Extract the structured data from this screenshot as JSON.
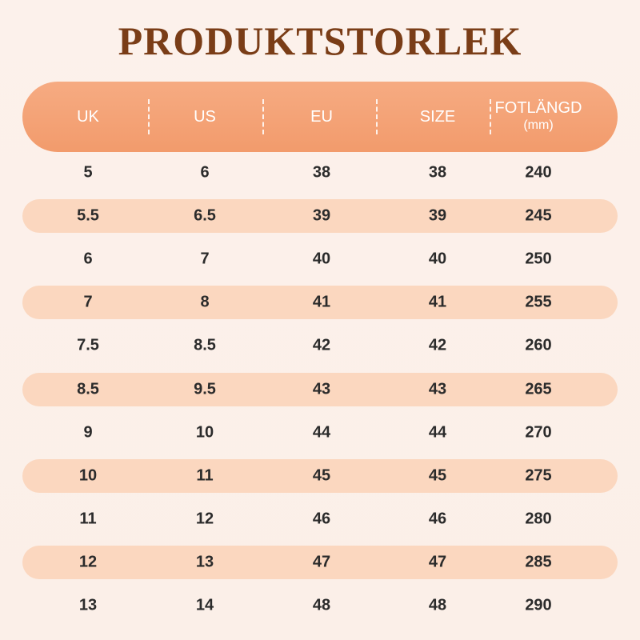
{
  "title": "PRODUKTSTORLEK",
  "table": {
    "headers": [
      "UK",
      "US",
      "EU",
      "SIZE",
      "FOTLÄNGD"
    ],
    "header_unit": "(mm)",
    "rows": [
      [
        "5",
        "6",
        "38",
        "38",
        "240"
      ],
      [
        "5.5",
        "6.5",
        "39",
        "39",
        "245"
      ],
      [
        "6",
        "7",
        "40",
        "40",
        "250"
      ],
      [
        "7",
        "8",
        "41",
        "41",
        "255"
      ],
      [
        "7.5",
        "8.5",
        "42",
        "42",
        "260"
      ],
      [
        "8.5",
        "9.5",
        "43",
        "43",
        "265"
      ],
      [
        "9",
        "10",
        "44",
        "44",
        "270"
      ],
      [
        "10",
        "11",
        "45",
        "45",
        "275"
      ],
      [
        "11",
        "12",
        "46",
        "46",
        "280"
      ],
      [
        "12",
        "13",
        "47",
        "47",
        "285"
      ],
      [
        "13",
        "14",
        "48",
        "48",
        "290"
      ]
    ]
  }
}
